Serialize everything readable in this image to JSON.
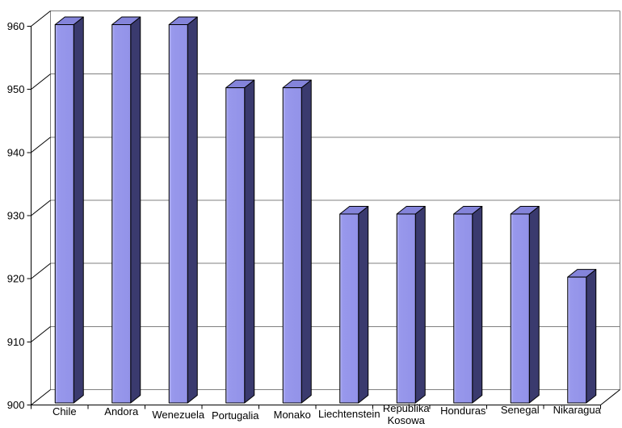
{
  "chart_data": {
    "type": "bar",
    "style": "3d-bar",
    "title": "",
    "xlabel": "",
    "ylabel": "",
    "categories": [
      "Chile",
      "Andora",
      "Wenezuela",
      "Portugalia",
      "Monako",
      "Liechtenstein",
      "Republika Kosowa",
      "Honduras",
      "Senegal",
      "Nikaragua"
    ],
    "category_label_lines": [
      [
        "Chile"
      ],
      [
        "Andora"
      ],
      [
        "Wenezuela"
      ],
      [
        "Portugalia"
      ],
      [
        "Monako"
      ],
      [
        "Liechtenstein"
      ],
      [
        "Republika",
        "Kosowa"
      ],
      [
        "Honduras"
      ],
      [
        "Senegal"
      ],
      [
        "Nikaragua"
      ]
    ],
    "values": [
      960,
      960,
      960,
      950,
      950,
      930,
      930,
      930,
      930,
      920
    ],
    "ylim": [
      900,
      960
    ],
    "yticks": [
      900,
      910,
      920,
      930,
      940,
      950,
      960
    ],
    "grid": true,
    "legend": "none",
    "background": "#FFFFFF",
    "colors": {
      "bar_front": "#9898EC",
      "bar_front_highlight": "#BCBCF6",
      "bar_front_right": "#9292E8",
      "bar_top": "#8484DA",
      "bar_side": "#3A3A6E",
      "bar_outline": "#000000",
      "gridline": "#808080",
      "wall_border": "#808080",
      "axis": "#000000",
      "text": "#000000"
    },
    "label_offsets": [
      3,
      3,
      7,
      8,
      7,
      6,
      -1,
      2,
      1,
      1
    ]
  }
}
